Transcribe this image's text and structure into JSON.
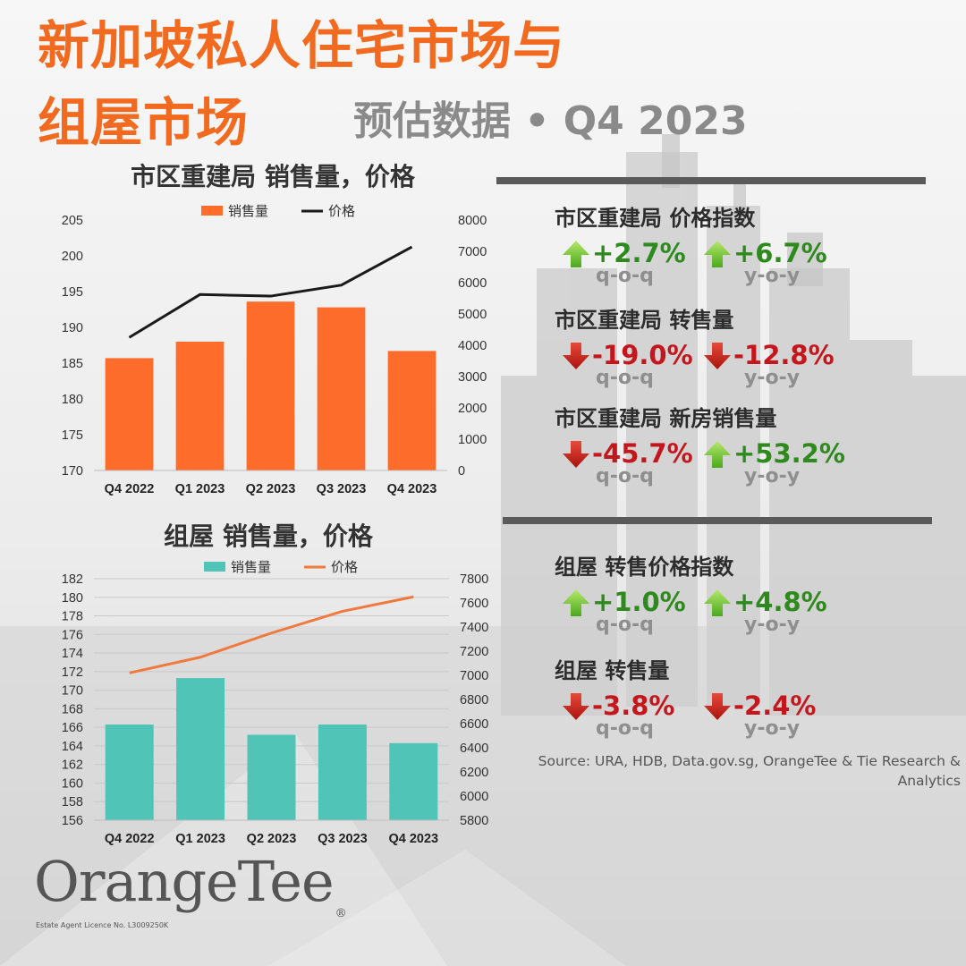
{
  "title": {
    "line1": "新加坡私人住宅市场与",
    "line2": "组屋市场",
    "subtitle": "预估数据 • Q4 2023"
  },
  "ura_chart_title": "市区重建局 销售量，价格",
  "hdb_chart_title": "组屋 销售量，价格",
  "chart_data": [
    {
      "type": "bar",
      "title": "市区重建局 销售量，价格",
      "categories": [
        "Q4 2022",
        "Q1 2023",
        "Q2 2023",
        "Q3 2023",
        "Q4 2023"
      ],
      "series": [
        {
          "name": "销售量",
          "type": "bar",
          "axis": "left",
          "values": [
            185.7,
            188.0,
            193.6,
            192.8,
            186.7
          ],
          "color": "#fe6c2b"
        },
        {
          "name": "价格",
          "type": "line",
          "axis": "right",
          "values": [
            4250,
            5620,
            5570,
            5920,
            7140
          ],
          "color": "#1a1a1a"
        }
      ],
      "left_axis": {
        "min": 170,
        "max": 205,
        "ticks": [
          205,
          200,
          195,
          190,
          185,
          180,
          175,
          170
        ]
      },
      "right_axis": {
        "min": 0,
        "max": 8000,
        "ticks": [
          8000,
          7000,
          6000,
          5000,
          4000,
          3000,
          2000,
          1000,
          0
        ]
      },
      "legend": "top",
      "grid": false
    },
    {
      "type": "bar",
      "title": "组屋 销售量，价格",
      "categories": [
        "Q4 2022",
        "Q1 2023",
        "Q2 2023",
        "Q3 2023",
        "Q4 2023"
      ],
      "series": [
        {
          "name": "销售量",
          "type": "bar",
          "axis": "left",
          "values": [
            166.3,
            171.3,
            165.2,
            166.3,
            164.3
          ],
          "color": "#4fc4b7"
        },
        {
          "name": "价格",
          "type": "line",
          "axis": "right",
          "values": [
            7020,
            7150,
            7350,
            7530,
            7650
          ],
          "color": "#f07a3e"
        }
      ],
      "left_axis": {
        "min": 156,
        "max": 182,
        "ticks": [
          182,
          180,
          178,
          176,
          174,
          172,
          170,
          168,
          166,
          164,
          162,
          160,
          158,
          156
        ]
      },
      "right_axis": {
        "min": 5800,
        "max": 7800,
        "ticks": [
          7800,
          7600,
          7400,
          7200,
          7000,
          6800,
          6600,
          6400,
          6200,
          6000,
          5800
        ]
      },
      "legend": "top",
      "grid": true
    }
  ],
  "metrics": [
    {
      "label": "市区重建局 价格指数",
      "qoq": "+2.7%",
      "qoq_dir": "up",
      "yoy": "+6.7%",
      "yoy_dir": "up"
    },
    {
      "label": "市区重建局 转售量",
      "qoq": "-19.0%",
      "qoq_dir": "down",
      "yoy": "-12.8%",
      "yoy_dir": "down"
    },
    {
      "label": "市区重建局 新房销售量",
      "qoq": "-45.7%",
      "qoq_dir": "down",
      "yoy": "+53.2%",
      "yoy_dir": "up"
    },
    {
      "label": "组屋 转售价格指数",
      "qoq": "+1.0%",
      "qoq_dir": "up",
      "yoy": "+4.8%",
      "yoy_dir": "up"
    },
    {
      "label": "组屋 转售量",
      "qoq": "-3.8%",
      "qoq_dir": "down",
      "yoy": "-2.4%",
      "yoy_dir": "down"
    }
  ],
  "period_labels": {
    "qoq": "q-o-q",
    "yoy": "y-o-y"
  },
  "source": "Source: URA, HDB, Data.gov.sg, OrangeTee  & Tie Research & Analytics",
  "logo": {
    "text": "OrangeTee",
    "reg": "®"
  },
  "licence": "Estate Agent Licence No. L3009250K",
  "colors": {
    "title": "#f26a1f",
    "up": "#2f8a1e",
    "down": "#c4171d",
    "ura_bar": "#fe6c2b",
    "hdb_bar": "#4fc4b7",
    "hdb_line": "#f07a3e"
  },
  "icons": {
    "up": "green-up-arrow-icon",
    "down": "red-down-arrow-icon"
  }
}
